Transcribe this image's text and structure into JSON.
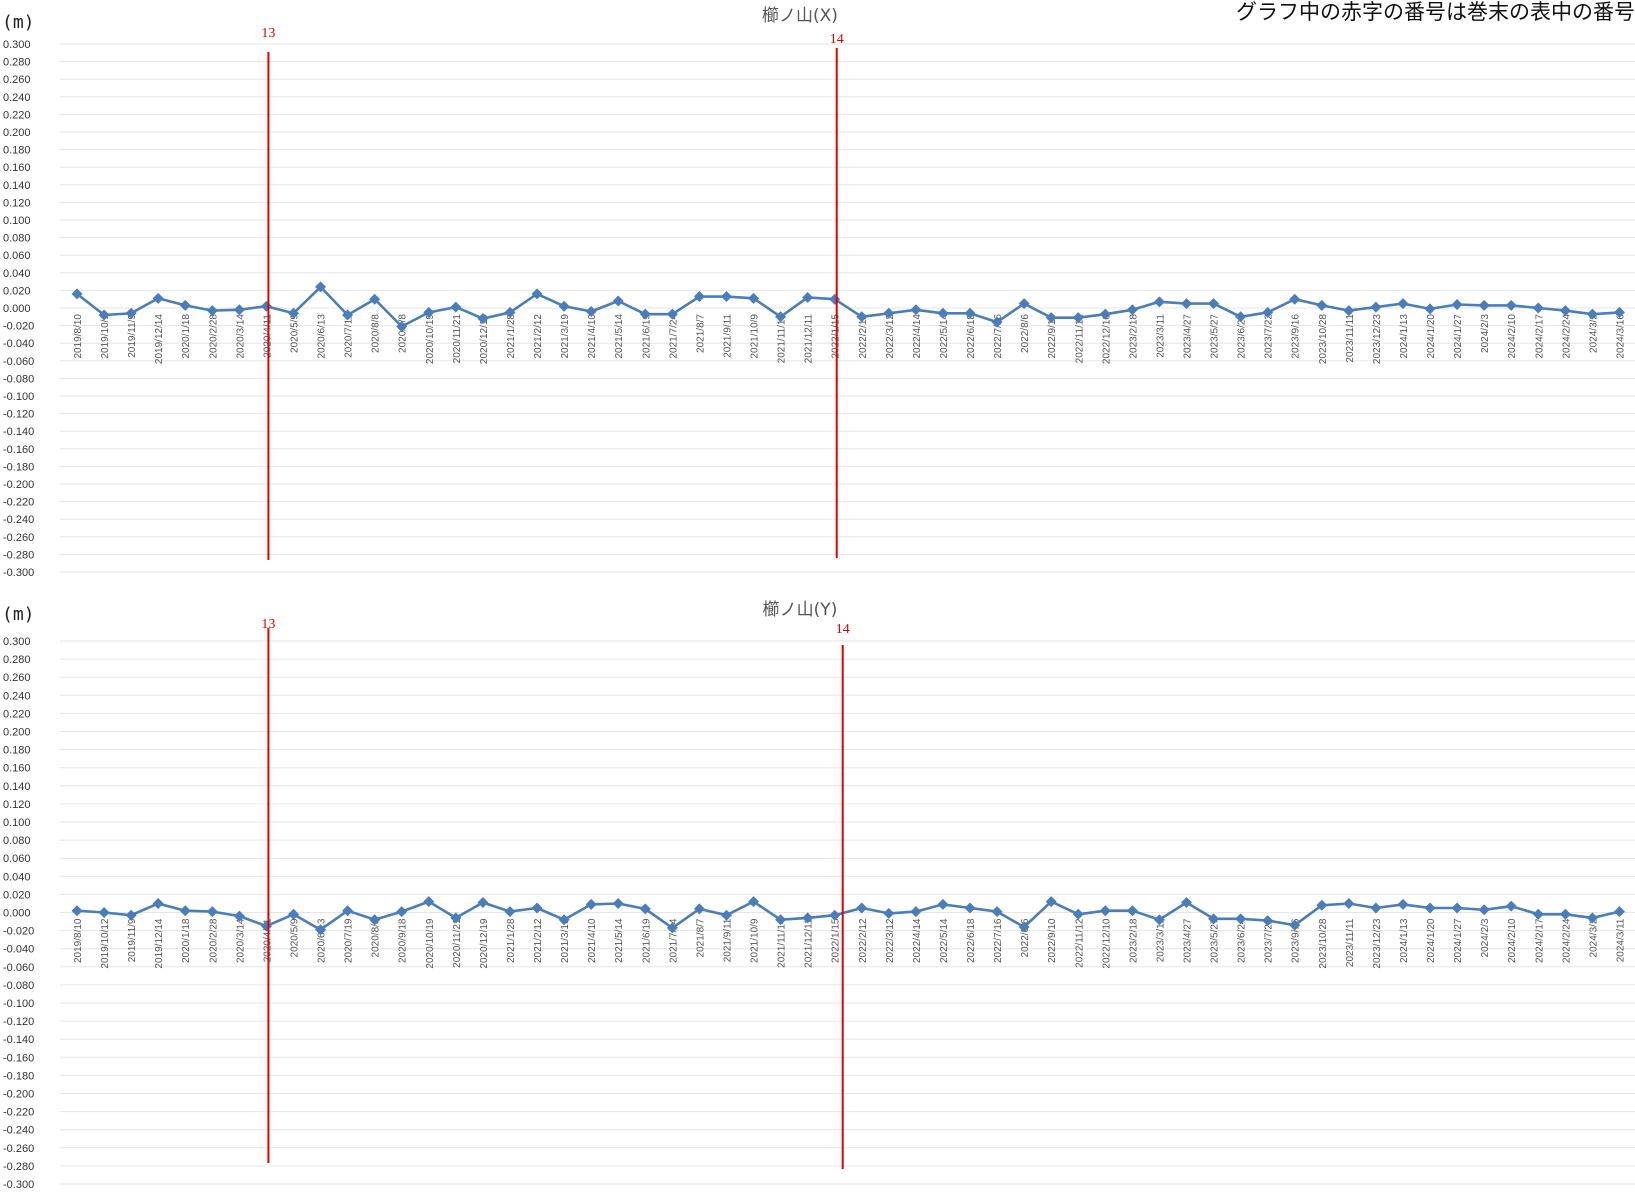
{
  "note": "グラフ中の赤字の番号は巻末の表中の番号",
  "colors": {
    "series": "#4a7ebb",
    "marker": "#e00000",
    "grid": "#e6e6e6"
  },
  "chart_data": [
    {
      "type": "line",
      "title": "櫛ノ山(X)",
      "unit_label": "(m)",
      "ylim": [
        -0.3,
        0.3
      ],
      "ytick_step": 0.02,
      "grid": true,
      "categories": [
        "2019/8/10",
        "2019/10/1",
        "2019/11/9",
        "2019/12/14",
        "2020/1/18",
        "2020/2/28",
        "2020/3/14",
        "2020/4/11",
        "2020/5/9",
        "2020/6/13",
        "2020/7/11",
        "2020/8/8",
        "2020/9/8",
        "2020/10/19",
        "2020/11/21",
        "2020/12/19",
        "2021/1/28",
        "2021/2/12",
        "2021/3/19",
        "2021/4/10",
        "2021/5/14",
        "2021/6/19",
        "2021/7/24",
        "2021/8/7",
        "2021/9/11",
        "2021/10/9",
        "2021/11/14",
        "2021/12/11",
        "2022/1/15",
        "2022/2/12",
        "2022/3/12",
        "2022/4/14",
        "2022/5/14",
        "2022/6/18",
        "2022/7/16",
        "2022/8/6",
        "2022/9/10",
        "2022/11/12",
        "2022/12/10",
        "2023/2/18",
        "2023/3/11",
        "2023/4/27",
        "2023/5/27",
        "2023/6/24",
        "2023/7/22",
        "2023/9/16",
        "2023/10/28",
        "2023/11/11",
        "2023/12/23",
        "2024/1/13",
        "2024/1/20",
        "2024/1/27",
        "2024/2/3",
        "2024/2/10",
        "2024/2/17",
        "2024/2/24",
        "2024/3/2",
        "2024/3/16"
      ],
      "series": [
        {
          "values": [
            0.016,
            -0.008,
            -0.006,
            0.011,
            0.003,
            -0.003,
            -0.002,
            0.002,
            -0.006,
            0.024,
            -0.008,
            0.01,
            -0.021,
            -0.005,
            0.001,
            -0.012,
            -0.005,
            0.016,
            0.002,
            -0.004,
            0.008,
            -0.007,
            -0.007,
            0.013,
            0.013,
            0.011,
            -0.01,
            0.012,
            0.01,
            -0.01,
            -0.006,
            -0.002,
            -0.006,
            -0.006,
            -0.016,
            0.005,
            -0.011,
            -0.011,
            -0.007,
            -0.002,
            0.007,
            0.005,
            0.005,
            -0.01,
            -0.005,
            0.01,
            0.003,
            -0.003,
            0.001,
            0.005,
            -0.001,
            0.004,
            0.003,
            0.003,
            0.0,
            -0.003,
            -0.007,
            -0.005
          ]
        }
      ],
      "markers": [
        {
          "label": "13",
          "category_index": 7
        },
        {
          "label": "14",
          "category_index": 28
        }
      ]
    },
    {
      "type": "line",
      "title": "櫛ノ山(Y)",
      "unit_label": "(m)",
      "ylim": [
        -0.3,
        0.3
      ],
      "ytick_step": 0.02,
      "grid": true,
      "categories": [
        "2019/8/10",
        "2019/10/12",
        "2019/11/9",
        "2019/12/14",
        "2020/1/18",
        "2020/2/28",
        "2020/3/14",
        "2020/4/11",
        "2020/5/9",
        "2020/6/13",
        "2020/7/19",
        "2020/8/8",
        "2020/9/18",
        "2020/10/19",
        "2020/11/21",
        "2020/12/19",
        "2021/1/28",
        "2021/2/12",
        "2021/3/19",
        "2021/4/10",
        "2021/5/14",
        "2021/6/19",
        "2021/7/24",
        "2021/8/7",
        "2021/9/11",
        "2021/10/9",
        "2021/11/14",
        "2021/12/11",
        "2022/1/15",
        "2022/2/12",
        "2022/3/12",
        "2022/4/14",
        "2022/5/14",
        "2022/6/18",
        "2022/7/16",
        "2022/8/6",
        "2022/9/10",
        "2022/11/12",
        "2022/12/10",
        "2023/2/18",
        "2023/3/11",
        "2023/4/27",
        "2023/5/27",
        "2023/6/24",
        "2023/7/22",
        "2023/9/16",
        "2023/10/28",
        "2023/11/11",
        "2023/12/23",
        "2024/1/13",
        "2024/1/20",
        "2024/1/27",
        "2024/2/3",
        "2024/2/10",
        "2024/2/17",
        "2024/2/24",
        "2024/3/2",
        "2024/3/11"
      ],
      "series": [
        {
          "values": [
            0.002,
            0.0,
            -0.003,
            0.01,
            0.002,
            0.001,
            -0.004,
            -0.015,
            -0.002,
            -0.019,
            0.002,
            -0.008,
            0.001,
            0.012,
            -0.006,
            0.011,
            0.001,
            0.005,
            -0.008,
            0.009,
            0.01,
            0.004,
            -0.017,
            0.004,
            -0.003,
            0.012,
            -0.008,
            -0.006,
            -0.003,
            0.005,
            -0.001,
            0.001,
            0.009,
            0.005,
            0.001,
            -0.016,
            0.012,
            -0.002,
            0.002,
            0.002,
            -0.008,
            0.011,
            -0.007,
            -0.007,
            -0.009,
            -0.014,
            0.008,
            0.01,
            0.005,
            0.009,
            0.005,
            0.005,
            0.003,
            0.007,
            -0.002,
            -0.002,
            -0.006,
            0.001
          ]
        }
      ],
      "markers": [
        {
          "label": "13",
          "category_index": 7
        },
        {
          "label": "14",
          "category_index": 28
        }
      ]
    }
  ]
}
